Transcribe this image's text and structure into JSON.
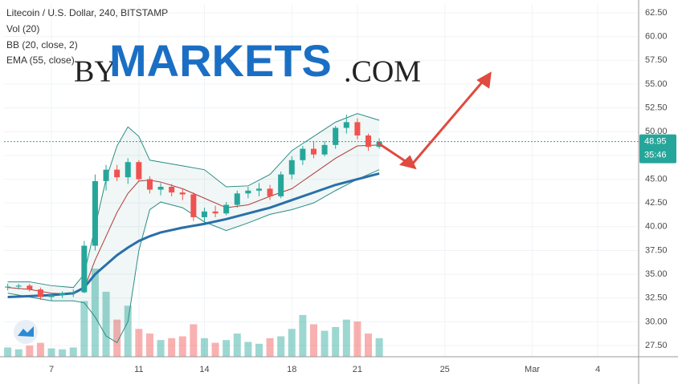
{
  "chart_data": {
    "type": "candlestick",
    "title": "Litecoin / U.S. Dollar, 240, BITSTAMP",
    "indicator_labels": [
      "Vol (20)",
      "BB (20, close, 2)",
      "EMA (55, close)"
    ],
    "watermark": [
      "BY",
      "MARKETS",
      ".COM"
    ],
    "xlim": [
      4.83,
      33.87
    ],
    "xticks": [
      7,
      11,
      14,
      18,
      21,
      25,
      {
        "value": 29,
        "label": "Mar"
      },
      {
        "value": 32,
        "label": "4"
      }
    ],
    "ylim": [
      26.32,
      63.43
    ],
    "yticks": [
      {
        "value": 27.5,
        "label": "27.50"
      },
      {
        "value": 30,
        "label": "30.00"
      },
      {
        "value": 32.5,
        "label": "32.50"
      },
      {
        "value": 35,
        "label": "35.00"
      },
      {
        "value": 37.5,
        "label": "37.50"
      },
      {
        "value": 40,
        "label": "40.00"
      },
      {
        "value": 42.5,
        "label": "42.50"
      },
      {
        "value": 45,
        "label": "45.00"
      },
      {
        "value": 47.5,
        "label": "47.50"
      },
      {
        "value": 50,
        "label": "50.00"
      },
      {
        "value": 52.5,
        "label": "52.50"
      },
      {
        "value": 55,
        "label": "55.00"
      },
      {
        "value": 57.5,
        "label": "57.50"
      },
      {
        "value": 60,
        "label": "60.00"
      },
      {
        "value": 62.5,
        "label": "62.50"
      }
    ],
    "grid": true,
    "up_color": "#26a69a",
    "down_color": "#ef5350",
    "x": [
      5,
      5.5,
      6,
      6.5,
      7,
      7.5,
      8,
      8.5,
      9,
      9.5,
      10,
      10.5,
      11,
      11.5,
      12,
      12.5,
      13,
      13.5,
      14,
      14.5,
      15,
      15.5,
      16,
      16.5,
      17,
      17.5,
      18,
      18.5,
      19,
      19.5,
      20,
      20.5,
      21,
      21.5,
      22
    ],
    "open": [
      33.6,
      33.7,
      33.8,
      33.4,
      32.6,
      32.8,
      33.0,
      33.1,
      38.0,
      44.8,
      46.0,
      45.2,
      46.8,
      45.0,
      43.9,
      44.2,
      43.6,
      43.4,
      41.0,
      41.6,
      41.4,
      42.3,
      43.5,
      43.8,
      44.0,
      43.2,
      45.5,
      47.0,
      48.2,
      47.6,
      48.6,
      50.4,
      51.0,
      49.6,
      48.4
    ],
    "high": [
      34.0,
      34.0,
      34.0,
      33.6,
      33.0,
      33.2,
      33.4,
      38.5,
      45.5,
      46.5,
      46.5,
      47.2,
      47.0,
      45.3,
      44.6,
      44.5,
      44.0,
      43.6,
      42.0,
      42.2,
      42.6,
      43.8,
      44.2,
      44.6,
      44.4,
      45.8,
      47.4,
      48.5,
      49.0,
      49.0,
      50.6,
      51.8,
      51.4,
      49.8,
      49.3
    ],
    "low": [
      33.3,
      33.4,
      33.2,
      32.3,
      32.2,
      32.5,
      32.6,
      33.0,
      37.5,
      43.8,
      44.8,
      44.5,
      44.8,
      43.5,
      43.3,
      43.2,
      42.8,
      40.6,
      40.4,
      41.0,
      41.2,
      42.0,
      43.0,
      43.2,
      42.8,
      43.0,
      45.0,
      46.5,
      47.2,
      47.4,
      48.2,
      49.8,
      49.2,
      48.0,
      48.2
    ],
    "close": [
      33.7,
      33.8,
      33.4,
      32.6,
      32.8,
      33.0,
      33.1,
      38.0,
      44.8,
      46.0,
      45.2,
      46.8,
      45.0,
      43.9,
      44.2,
      43.6,
      43.4,
      41.0,
      41.6,
      41.4,
      42.3,
      43.5,
      43.8,
      44.0,
      43.2,
      45.5,
      47.0,
      48.2,
      47.6,
      48.6,
      50.4,
      51.0,
      49.6,
      48.4,
      48.95
    ],
    "volume": [
      10,
      8,
      12,
      15,
      9,
      8,
      10,
      60,
      95,
      70,
      40,
      55,
      30,
      25,
      18,
      20,
      22,
      35,
      20,
      15,
      18,
      25,
      16,
      14,
      20,
      22,
      30,
      45,
      35,
      28,
      32,
      40,
      38,
      25,
      20
    ],
    "indicator_x": [
      5,
      6,
      7,
      8,
      8.5,
      9,
      9.5,
      10,
      10.5,
      11,
      11.5,
      12,
      13,
      14,
      15,
      16,
      17,
      18,
      19,
      20,
      21,
      22
    ],
    "bb_upper": [
      34.2,
      34.2,
      33.8,
      33.6,
      35,
      40,
      45,
      48.5,
      50.5,
      49.5,
      47,
      46.8,
      46.4,
      46.0,
      44.2,
      44.3,
      45.5,
      48,
      49.5,
      51.0,
      51.9,
      51.2
    ],
    "bb_middle": [
      33.6,
      33.4,
      33.0,
      32.9,
      33.5,
      36.5,
      39,
      41.5,
      43.5,
      44.8,
      44.9,
      44.7,
      44.0,
      43.0,
      42.0,
      42.3,
      43.2,
      44.0,
      45.6,
      47.2,
      48.5,
      48.6
    ],
    "bb_lower": [
      33.0,
      32.6,
      32.2,
      32.2,
      32.0,
      30.5,
      28.5,
      27.8,
      30,
      37.5,
      41.8,
      42.6,
      42.0,
      40.5,
      39.6,
      40.4,
      41.3,
      41.8,
      42.5,
      43.8,
      45.0,
      46.0
    ],
    "ema": [
      32.6,
      32.7,
      32.8,
      33.0,
      33.6,
      35.0,
      36.0,
      37.0,
      37.8,
      38.5,
      39.0,
      39.4,
      39.9,
      40.3,
      40.8,
      41.4,
      42.0,
      42.8,
      43.6,
      44.4,
      45.0,
      45.6
    ],
    "bb_color": "#2b8c86",
    "bb_middle_color": "#b03a3a",
    "ema_color": "#2a6fa8",
    "last_price": 48.95,
    "countdown": "35:46"
  }
}
